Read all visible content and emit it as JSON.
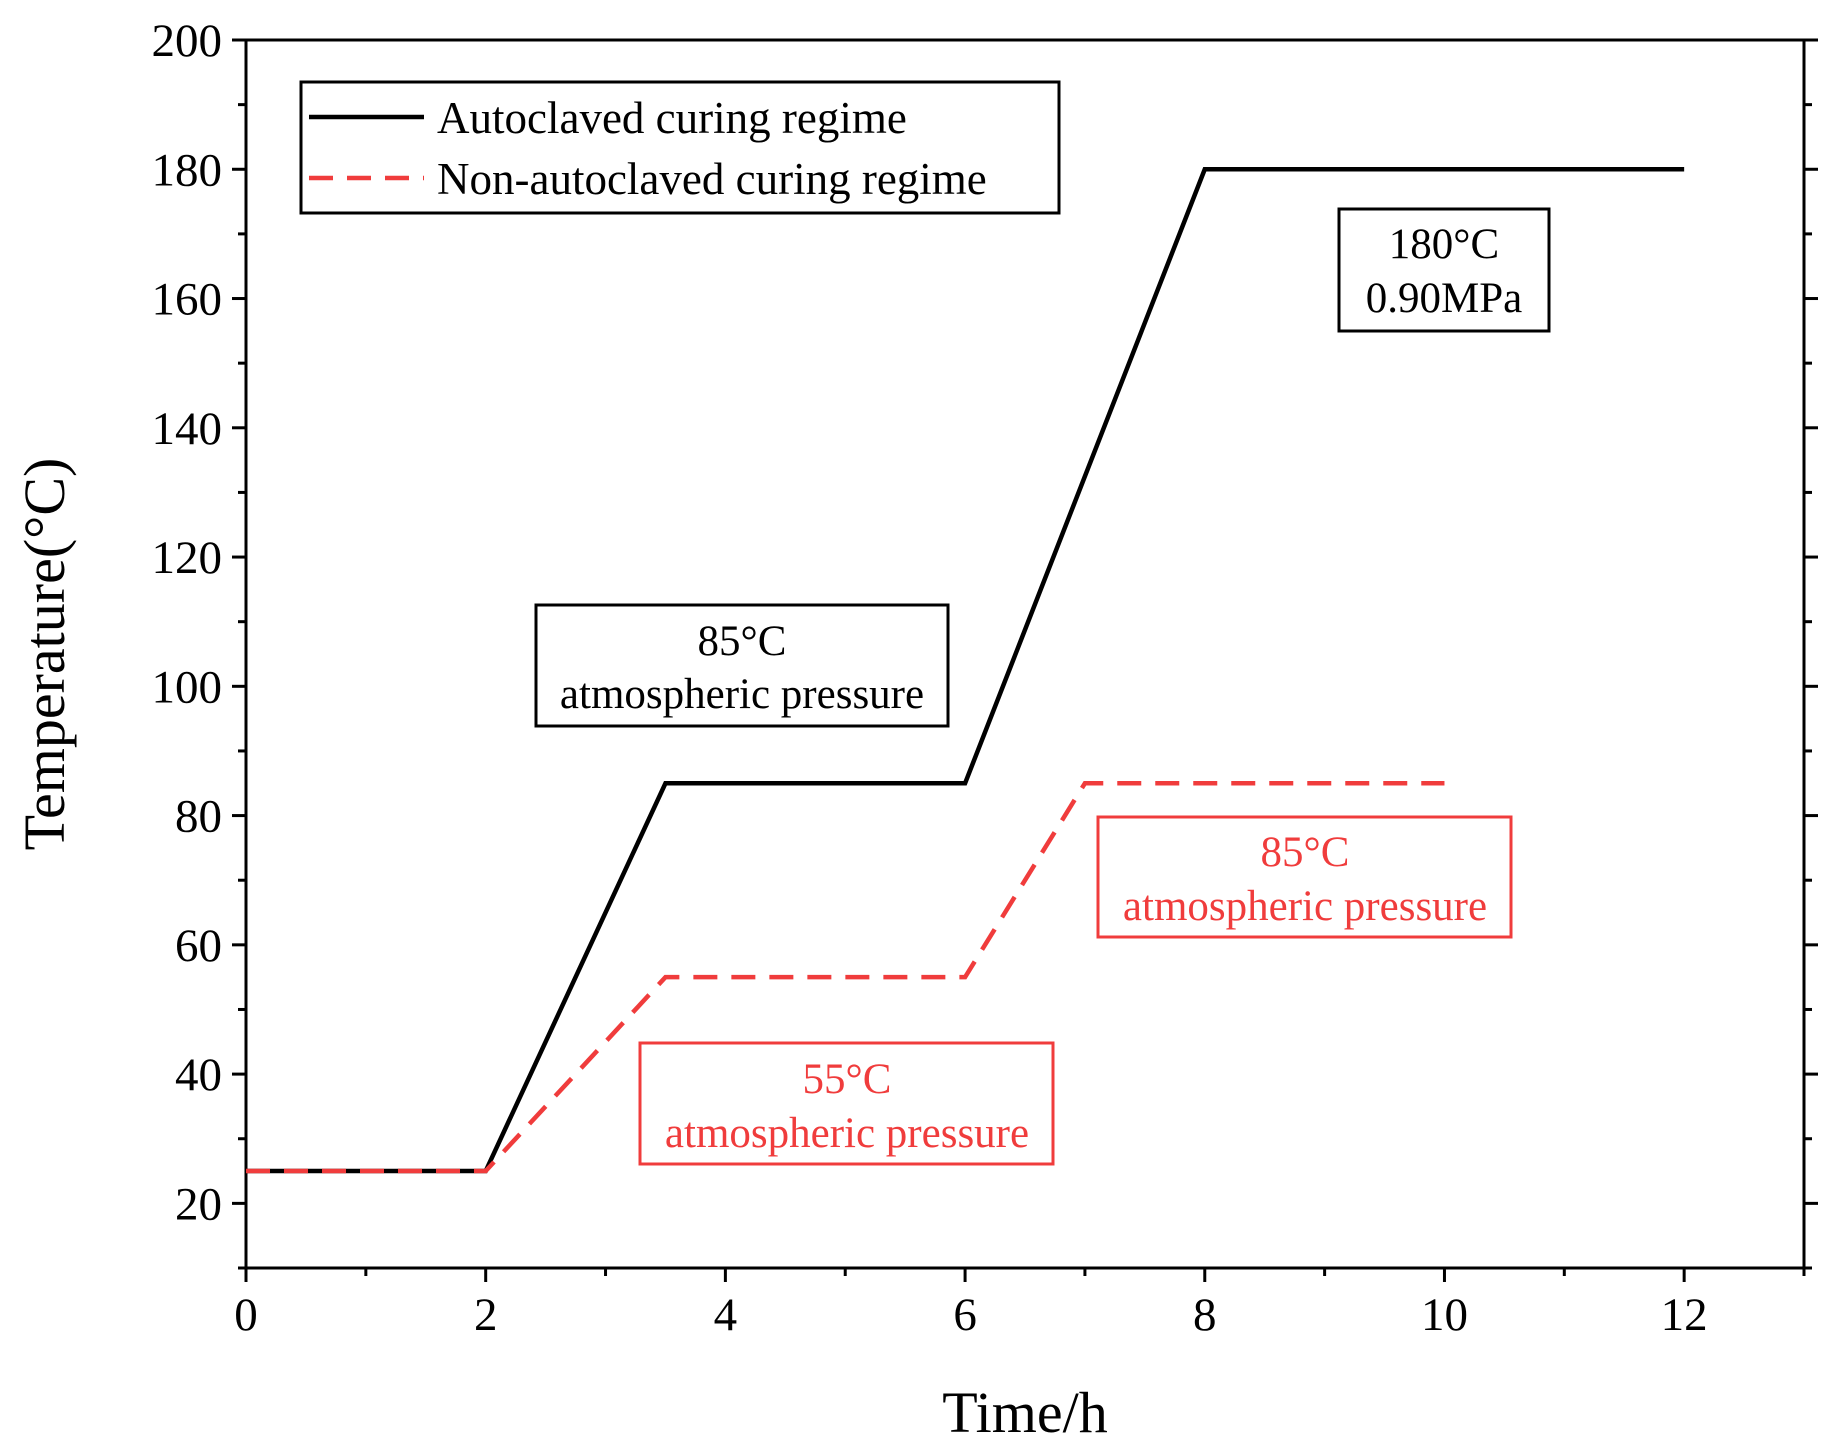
{
  "chart_data": {
    "type": "line",
    "title": "",
    "xlabel": "Time/h",
    "ylabel": "Temperature(°C)",
    "xlim": [
      0,
      13
    ],
    "ylim": [
      10,
      200
    ],
    "xticks": [
      0,
      2,
      4,
      6,
      8,
      10,
      12
    ],
    "yticks": [
      20,
      40,
      60,
      80,
      100,
      120,
      140,
      160,
      180,
      200
    ],
    "legend_position": "top-left",
    "series": [
      {
        "name": "Autoclaved curing regime",
        "color": "#000000",
        "style": "solid",
        "x": [
          0,
          2,
          3.5,
          6,
          8,
          12
        ],
        "y": [
          25,
          25,
          85,
          85,
          180,
          180
        ]
      },
      {
        "name": "Non-autoclaved curing regime",
        "color": "#f03c3c",
        "style": "dashed",
        "x": [
          0,
          2,
          3.5,
          6,
          7,
          10
        ],
        "y": [
          25,
          25,
          55,
          55,
          85,
          85
        ]
      }
    ],
    "annotations": [
      {
        "lines": [
          "180°C",
          "0.90MPa"
        ],
        "color": "#000000"
      },
      {
        "lines": [
          "85°C",
          "atmospheric pressure"
        ],
        "color": "#000000"
      },
      {
        "lines": [
          "85°C",
          "atmospheric pressure"
        ],
        "color": "#f03c3c"
      },
      {
        "lines": [
          "55°C",
          "atmospheric pressure"
        ],
        "color": "#f03c3c"
      }
    ]
  }
}
